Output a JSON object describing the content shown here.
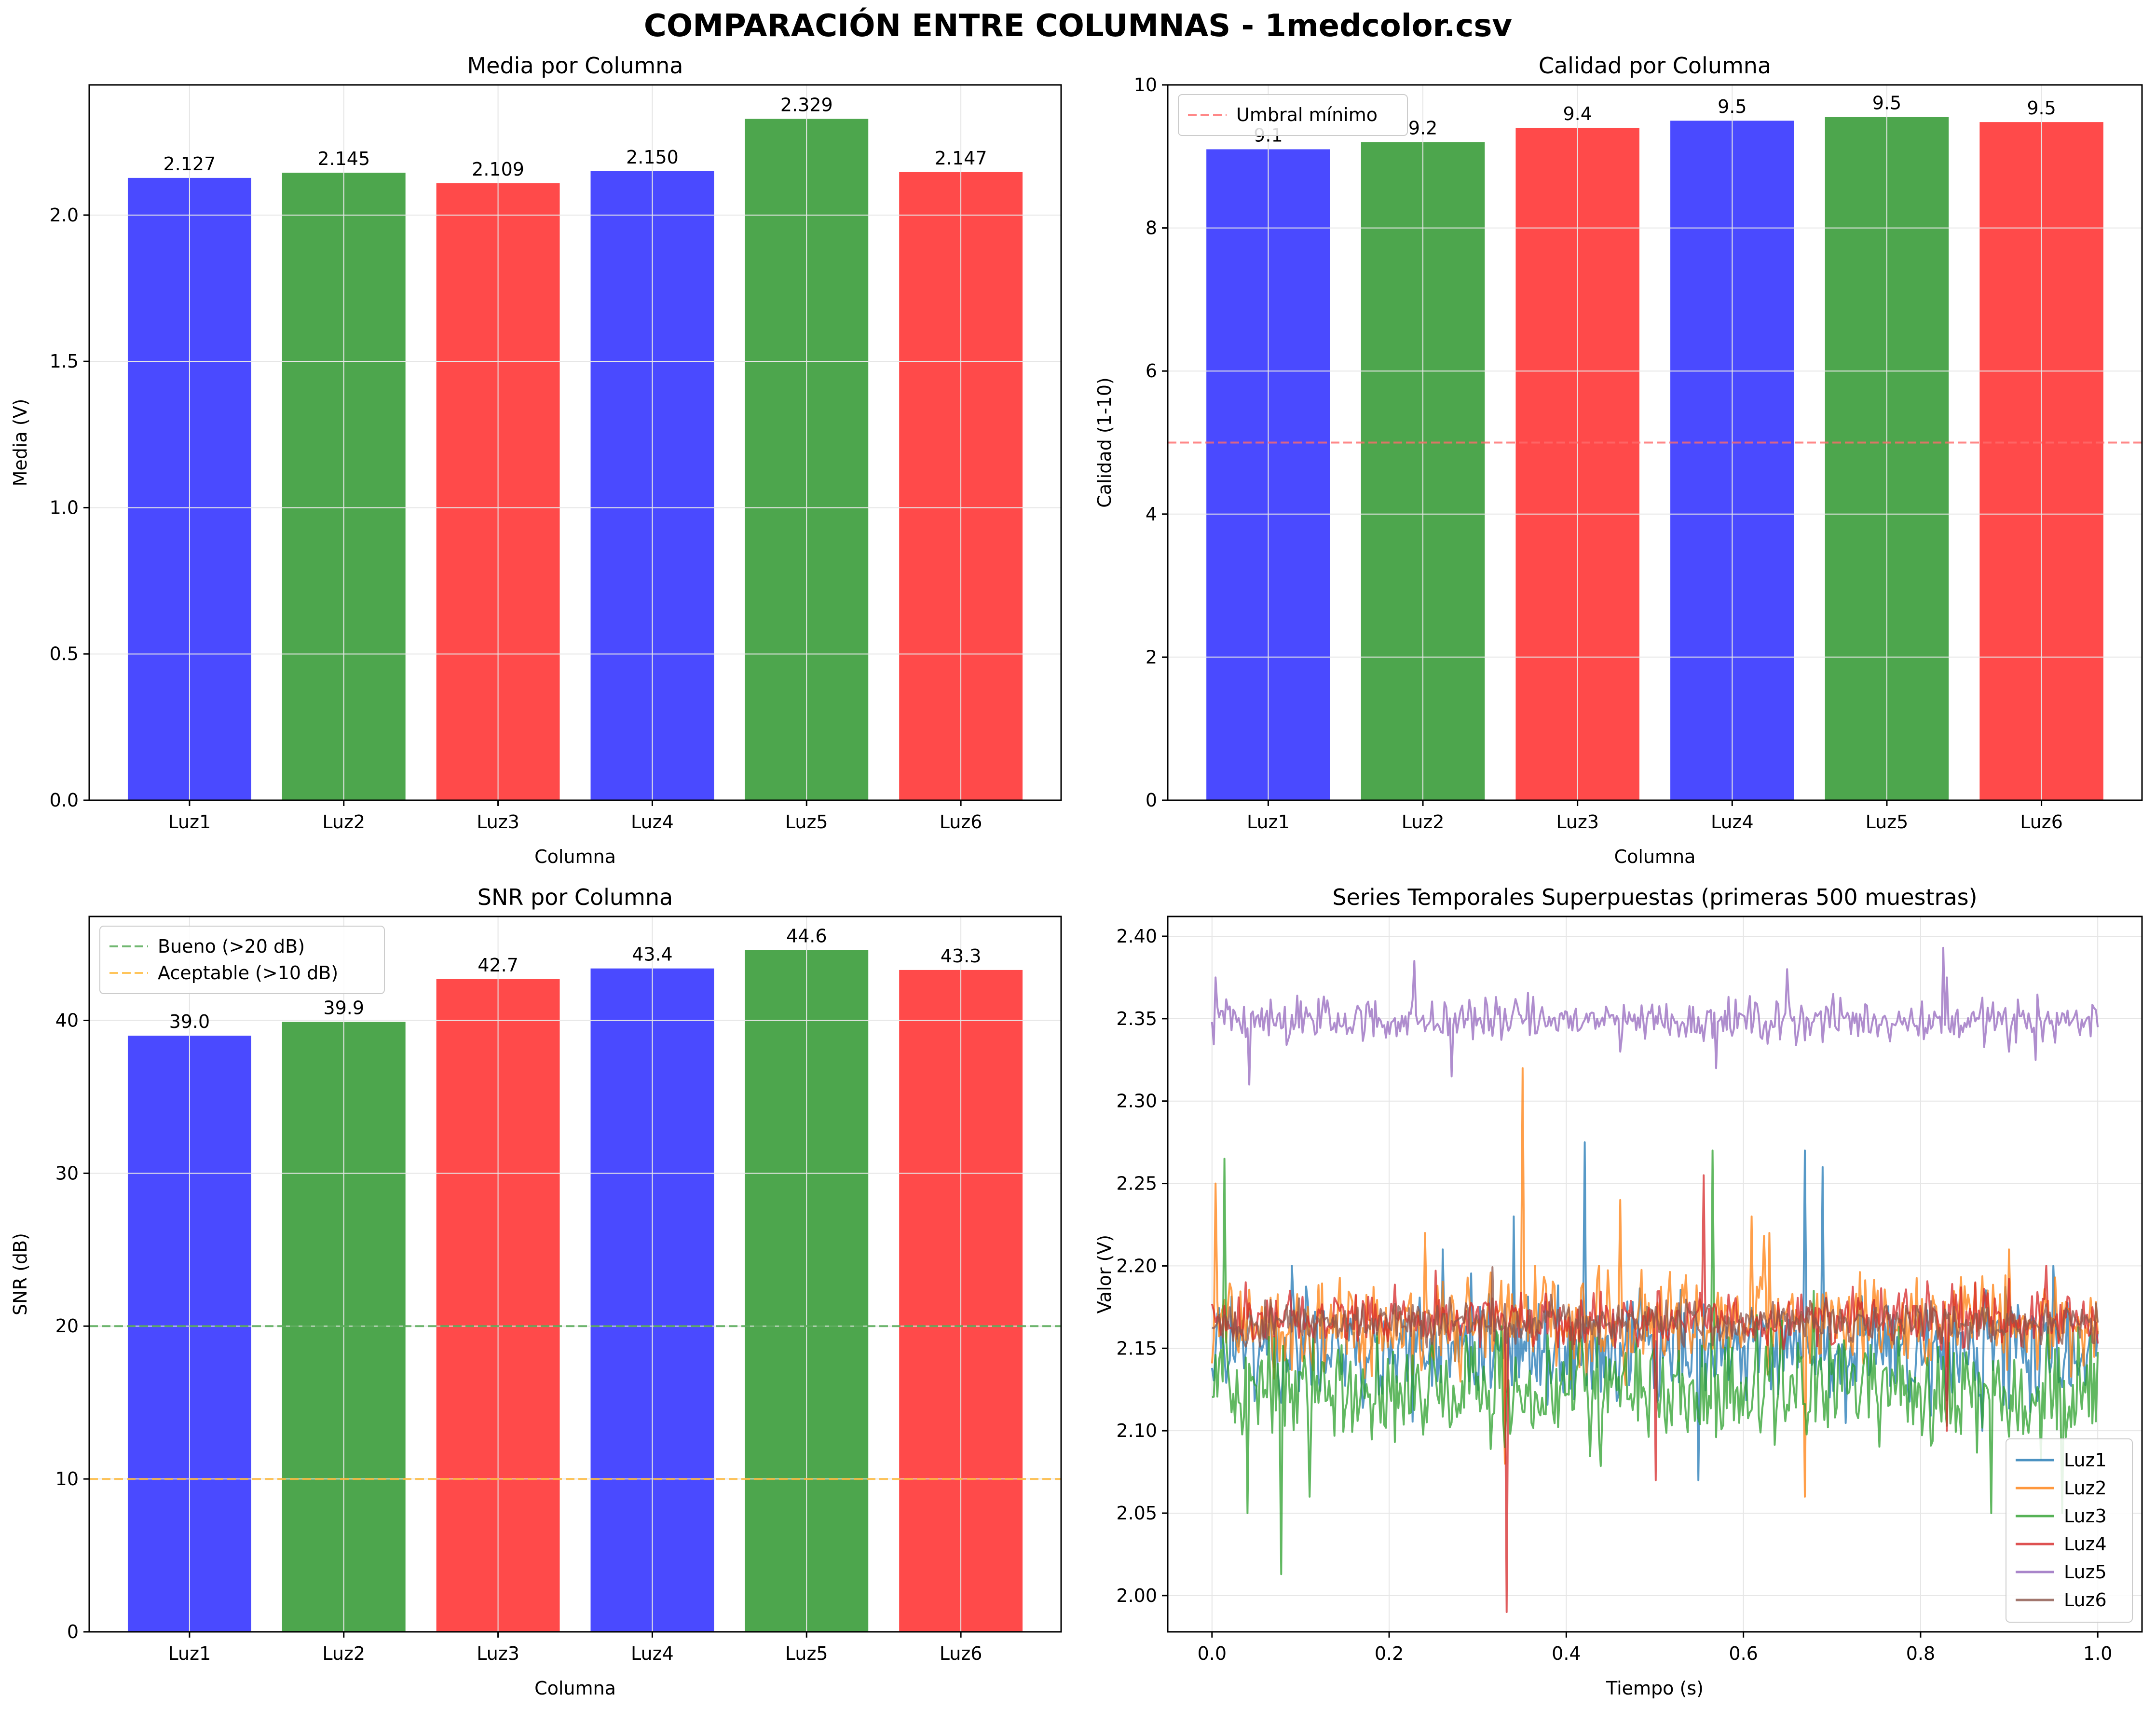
{
  "suptitle": "COMPARACIÓN ENTRE COLUMNAS - 1medcolor.csv",
  "colors": {
    "blue": "#4a4aff",
    "green": "#4da64d",
    "red": "#ff4a4a",
    "grid": "#e6e6e6",
    "threshold_red": "#ff6b6b",
    "good_green": "#4da64d",
    "acceptable_orange": "#ffb733"
  },
  "chart_data": [
    {
      "type": "bar",
      "title": "Media por Columna",
      "xlabel": "Columna",
      "ylabel": "Media (V)",
      "categories": [
        "Luz1",
        "Luz2",
        "Luz3",
        "Luz4",
        "Luz5",
        "Luz6"
      ],
      "values": [
        2.127,
        2.145,
        2.109,
        2.15,
        2.329,
        2.147
      ],
      "value_labels": [
        "2.127",
        "2.145",
        "2.109",
        "2.150",
        "2.329",
        "2.147"
      ],
      "bar_colors": [
        "blue",
        "green",
        "red",
        "blue",
        "green",
        "red"
      ],
      "ylim": [
        0,
        2.445
      ],
      "yticks": [
        0.0,
        0.5,
        1.0,
        1.5,
        2.0
      ],
      "ytick_labels": [
        "0.0",
        "0.5",
        "1.0",
        "1.5",
        "2.0"
      ],
      "grid": true
    },
    {
      "type": "bar",
      "title": "Calidad por Columna",
      "xlabel": "Columna",
      "ylabel": "Calidad (1-10)",
      "categories": [
        "Luz1",
        "Luz2",
        "Luz3",
        "Luz4",
        "Luz5",
        "Luz6"
      ],
      "values": [
        9.1,
        9.2,
        9.4,
        9.5,
        9.55,
        9.48
      ],
      "value_labels": [
        "9.1",
        "9.2",
        "9.4",
        "9.5",
        "9.5",
        "9.5"
      ],
      "bar_colors": [
        "blue",
        "green",
        "red",
        "blue",
        "green",
        "red"
      ],
      "ylim": [
        0,
        10
      ],
      "yticks": [
        0,
        2,
        4,
        6,
        8,
        10
      ],
      "ytick_labels": [
        "0",
        "2",
        "4",
        "6",
        "8",
        "10"
      ],
      "hlines": [
        {
          "y": 5,
          "label": "Umbral mínimo",
          "color": "threshold_red"
        }
      ],
      "legend": "top-left",
      "grid": true
    },
    {
      "type": "bar",
      "title": "SNR por Columna",
      "xlabel": "Columna",
      "ylabel": "SNR (dB)",
      "categories": [
        "Luz1",
        "Luz2",
        "Luz3",
        "Luz4",
        "Luz5",
        "Luz6"
      ],
      "values": [
        39.0,
        39.9,
        42.7,
        43.4,
        44.6,
        43.3
      ],
      "value_labels": [
        "39.0",
        "39.9",
        "42.7",
        "43.4",
        "44.6",
        "43.3"
      ],
      "bar_colors": [
        "blue",
        "green",
        "red",
        "blue",
        "green",
        "red"
      ],
      "ylim": [
        0,
        46.8
      ],
      "yticks": [
        0,
        10,
        20,
        30,
        40
      ],
      "ytick_labels": [
        "0",
        "10",
        "20",
        "30",
        "40"
      ],
      "hlines": [
        {
          "y": 20,
          "label": "Bueno (>20 dB)",
          "color": "good_green"
        },
        {
          "y": 10,
          "label": "Aceptable (>10 dB)",
          "color": "acceptable_orange"
        }
      ],
      "legend": "top-left",
      "grid": true
    },
    {
      "type": "line",
      "title": "Series Temporales Superpuestas (primeras 500 muestras)",
      "xlabel": "Tiempo (s)",
      "ylabel": "Valor (V)",
      "xlim": [
        -0.05,
        1.05
      ],
      "ylim": [
        1.978,
        2.412
      ],
      "xticks": [
        0.0,
        0.2,
        0.4,
        0.6,
        0.8,
        1.0
      ],
      "xtick_labels": [
        "0.0",
        "0.2",
        "0.4",
        "0.6",
        "0.8",
        "1.0"
      ],
      "yticks": [
        2.0,
        2.05,
        2.1,
        2.15,
        2.2,
        2.25,
        2.3,
        2.35,
        2.4
      ],
      "ytick_labels": [
        "2.00",
        "2.05",
        "2.10",
        "2.15",
        "2.20",
        "2.25",
        "2.30",
        "2.35",
        "2.40"
      ],
      "legend": "bottom-right",
      "grid": true,
      "series": [
        {
          "name": "Luz1",
          "color": "#1f77b4",
          "mean": 2.148,
          "noise": 0.02,
          "spikes": [
            [
              0.09,
              2.2
            ],
            [
              0.26,
              2.21
            ],
            [
              0.34,
              2.23
            ],
            [
              0.42,
              2.275
            ],
            [
              0.67,
              2.27
            ],
            [
              0.69,
              2.26
            ],
            [
              0.55,
              2.07
            ],
            [
              0.87,
              2.1
            ],
            [
              0.95,
              2.2
            ]
          ]
        },
        {
          "name": "Luz2",
          "color": "#ff7f0e",
          "mean": 2.165,
          "noise": 0.018,
          "spikes": [
            [
              0.005,
              2.25
            ],
            [
              0.35,
              2.32
            ],
            [
              0.24,
              2.22
            ],
            [
              0.46,
              2.24
            ],
            [
              0.61,
              2.23
            ],
            [
              0.63,
              2.22
            ],
            [
              0.33,
              2.08
            ],
            [
              0.67,
              2.06
            ],
            [
              0.9,
              2.21
            ]
          ]
        },
        {
          "name": "Luz3",
          "color": "#2ca02c",
          "mean": 2.125,
          "noise": 0.02,
          "spikes": [
            [
              0.015,
              2.265
            ],
            [
              0.078,
              2.013
            ],
            [
              0.04,
              2.05
            ],
            [
              0.565,
              2.27
            ],
            [
              0.11,
              2.06
            ],
            [
              0.88,
              2.05
            ],
            [
              0.96,
              2.05
            ],
            [
              0.33,
              2.09
            ]
          ]
        },
        {
          "name": "Luz4",
          "color": "#d62728",
          "mean": 2.168,
          "noise": 0.01,
          "spikes": [
            [
              0.333,
              1.99
            ],
            [
              0.555,
              2.255
            ],
            [
              0.5,
              2.07
            ],
            [
              0.83,
              2.1
            ]
          ]
        },
        {
          "name": "Luz5",
          "color": "#9467bd",
          "mean": 2.349,
          "noise": 0.008,
          "spikes": [
            [
              0.005,
              2.375
            ],
            [
              0.042,
              2.31
            ],
            [
              0.228,
              2.385
            ],
            [
              0.27,
              2.315
            ],
            [
              0.46,
              2.33
            ],
            [
              0.57,
              2.32
            ],
            [
              0.65,
              2.38
            ],
            [
              0.825,
              2.393
            ],
            [
              0.83,
              2.375
            ],
            [
              0.9,
              2.33
            ],
            [
              0.93,
              2.325
            ]
          ]
        },
        {
          "name": "Luz6",
          "color": "#8c564b",
          "mean": 2.166,
          "noise": 0.008,
          "spikes": []
        }
      ]
    }
  ]
}
